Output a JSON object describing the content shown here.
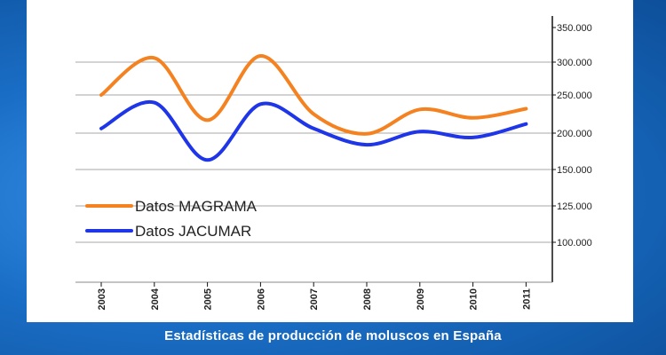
{
  "caption": "Estadísticas de producción de moluscos en España",
  "chart_data": {
    "type": "line",
    "title": "",
    "xlabel": "",
    "ylabel": "",
    "categories": [
      "2003",
      "2004",
      "2005",
      "2006",
      "2007",
      "2008",
      "2009",
      "2010",
      "2011"
    ],
    "y_ticks": [
      "350.000",
      "300.000",
      "250.000",
      "200.000",
      "150.000",
      "125.000",
      "100.000"
    ],
    "y_axis_side": "right",
    "grid": true,
    "legend_position": "left",
    "series": [
      {
        "name": "Datos MAGRAMA",
        "color": "#f58220",
        "values": [
          250000,
          306000,
          217000,
          309000,
          225000,
          199000,
          231000,
          220000,
          232000
        ]
      },
      {
        "name": "Datos JACUMAR",
        "color": "#1f35e8",
        "values": [
          206000,
          240000,
          163000,
          238000,
          206000,
          184000,
          202000,
          194000,
          212000
        ]
      }
    ]
  }
}
